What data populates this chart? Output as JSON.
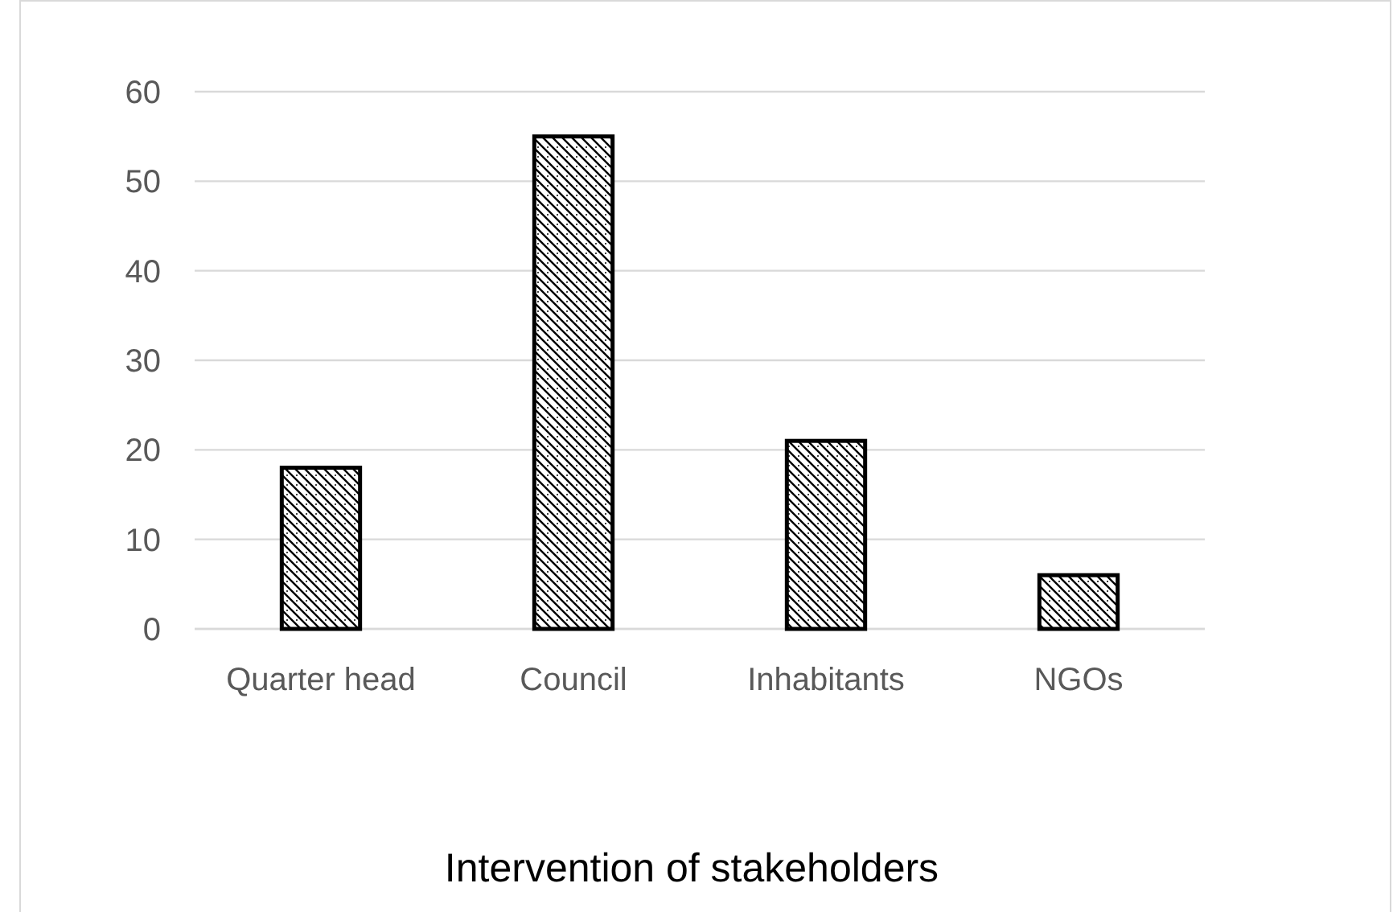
{
  "chart_data": {
    "type": "bar",
    "annotations": [
      "Intervention of stakeholders"
    ],
    "categories": [
      "Quarter head",
      "Council",
      "Inhabitants",
      "NGOs"
    ],
    "values": [
      18,
      55,
      21,
      6
    ],
    "color": "#000000",
    "ylim": [
      0,
      60
    ],
    "yticks": [
      0,
      10,
      20,
      30,
      40,
      50,
      60
    ],
    "grid": "y"
  }
}
